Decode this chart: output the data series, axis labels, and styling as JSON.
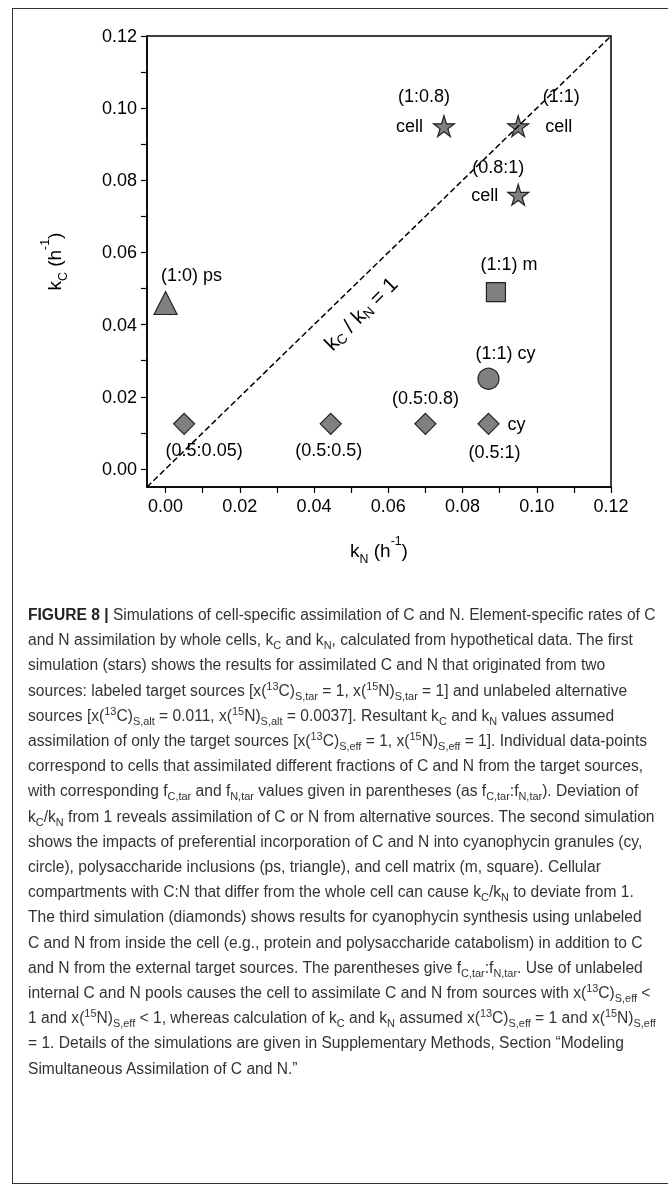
{
  "chart_data": {
    "type": "scatter",
    "title": "FIGURE 8 |",
    "xlabel": "k$_{N}$ (h$^{-1}$)",
    "ylabel": "k$_{C}$ (h$^{-1}$)",
    "xlim": [
      -0.005,
      0.12
    ],
    "ylim": [
      -0.005,
      0.12
    ],
    "xticks": [
      {
        "value": 0,
        "label": "0.00"
      },
      {
        "value": 0.01,
        "label": null
      },
      {
        "value": 0.02,
        "label": "0.02"
      },
      {
        "value": 0.03,
        "label": null
      },
      {
        "value": 0.04,
        "label": "0.04"
      },
      {
        "value": 0.05,
        "label": null
      },
      {
        "value": 0.06,
        "label": "0.06"
      },
      {
        "value": 0.07,
        "label": null
      },
      {
        "value": 0.08,
        "label": "0.08"
      },
      {
        "value": 0.09,
        "label": null
      },
      {
        "value": 0.1,
        "label": "0.10"
      },
      {
        "value": 0.11,
        "label": null
      },
      {
        "value": 0.12,
        "label": "0.12"
      }
    ],
    "yticks": [
      {
        "value": 0,
        "label": "0.00"
      },
      {
        "value": 0.01,
        "label": null
      },
      {
        "value": 0.02,
        "label": "0.02"
      },
      {
        "value": 0.03,
        "label": null
      },
      {
        "value": 0.04,
        "label": "0.04"
      },
      {
        "value": 0.05,
        "label": null
      },
      {
        "value": 0.06,
        "label": "0.06"
      },
      {
        "value": 0.07,
        "label": null
      },
      {
        "value": 0.08,
        "label": "0.08"
      },
      {
        "value": 0.09,
        "label": null
      },
      {
        "value": 0.1,
        "label": "0.10"
      },
      {
        "value": 0.11,
        "label": null
      },
      {
        "value": 0.12,
        "label": "0.12"
      }
    ],
    "series": [
      {
        "type": "line",
        "color": "#000000",
        "line_style": "dashed",
        "marker": "none",
        "x": [
          -0.005,
          0.12
        ],
        "values": [
          -0.005,
          0.12
        ]
      },
      {
        "color": "#808080",
        "marker": "star",
        "x": [
          0.075,
          0.095,
          0.095
        ],
        "values": [
          0.095,
          0.095,
          0.076
        ]
      },
      {
        "color": "#808080",
        "marker": "triangle",
        "x": [
          0
        ],
        "values": [
          0.046
        ]
      },
      {
        "color": "#808080",
        "marker": "square",
        "x": [
          0.089
        ],
        "values": [
          0.049
        ]
      },
      {
        "color": "#808080",
        "marker": "circle",
        "x": [
          0.087
        ],
        "values": [
          0.025
        ]
      },
      {
        "color": "#808080",
        "marker": "diamond",
        "x": [
          0.005,
          0.0445,
          0.07,
          0.087
        ],
        "values": [
          0.0125,
          0.0125,
          0.0125,
          0.0125
        ]
      }
    ],
    "annotations": [
      {
        "text": "(1:0.8)",
        "x": 0.075,
        "y": 0.095
      },
      {
        "text": "cell",
        "x": 0.075,
        "y": 0.095
      },
      {
        "text": "(1:1)",
        "x": 0.095,
        "y": 0.095
      },
      {
        "text": "cell",
        "x": 0.095,
        "y": 0.095
      },
      {
        "text": "(0.8:1)",
        "x": 0.095,
        "y": 0.076
      },
      {
        "text": "cell",
        "x": 0.095,
        "y": 0.076
      },
      {
        "text": "(1:0) ps",
        "x": 0,
        "y": 0.046
      },
      {
        "text": "(1:1) m",
        "x": 0.089,
        "y": 0.049
      },
      {
        "text": "(1:1) cy",
        "x": 0.087,
        "y": 0.025
      },
      {
        "text": "(0.5:0.05)",
        "x": 0.005,
        "y": 0.0125
      },
      {
        "text": "(0.5:0.5)",
        "x": 0.0445,
        "y": 0.0125
      },
      {
        "text": "(0.5:0.8)",
        "x": 0.07,
        "y": 0.0125
      },
      {
        "text": "cy",
        "x": 0.087,
        "y": 0.0125
      },
      {
        "text": "(0.5:1)",
        "x": 0.087,
        "y": 0.0125
      },
      {
        "text": "k$_{C}$ / k$_{N}$ = 1",
        "x": 0.052,
        "y": 0.052
      },
      "Simulations of cell-specific assimilation of C and N. Element-specific rates of C and N assimilation by whole cells, k$_{C}$ and k$_{N}$, calculated from hypothetical data. The first simulation (stars) shows the results for assimilated C and N that originated from two sources: labeled target sources [x($^{13}$C)$_{S,tar}$ = 1, x($^{15}$N)$_{S,tar}$ = 1] and unlabeled alternative sources [x($^{13}$C)$_{S,alt}$ = 0.011, x($^{15}$N)$_{S,alt}$ = 0.0037]. Resultant k$_{C}$ and k$_{N}$ values assumed assimilation of only the target sources [x($^{13}$C)$_{S,eff}$ = 1, x($^{15}$N)$_{S,eff}$ = 1]. Individual data-points correspond to cells that assimilated different fractions of C and N from the target sources, with corresponding f$_{C,tar}$ and f$_{N,tar}$ values given in parentheses (as f$_{C,tar}$:f$_{N,tar}$). Deviation of k$_{C}$/k$_{N}$ from 1 reveals assimilation of C or N from alternative sources. The second simulation shows the impacts of preferential incorporation of C and N into cyanophycin granules (cy, circle), polysaccharide inclusions (ps, triangle), and cell matrix (m, square). Cellular compartments with C:N that differ from the whole cell can cause k$_{C}$/k$_{N}$ to deviate from 1. The third simulation (diamonds) shows results for cyanophycin synthesis using unlabeled C and N from inside the cell (e.g., protein and polysaccharide catabolism) in addition to C and N from the external target sources. The parentheses give f$_{C,tar}$:f$_{N,tar}$. Use of unlabeled internal C and N pools causes the cell to assimilate C and N from sources with x($^{13}$C)$_{S,eff}$ < 1 and x($^{15}$N)$_{S,eff}$ < 1, whereas calculation of k$_{C}$ and k$_{N}$ assumed x($^{13}$C)$_{S,eff}$ = 1 and x($^{15}$N)$_{S,eff}$ = 1. Details of the simulations are given in Supplementary Methods, Section “Modeling Simultaneous Assimilation of C and N.”"
    ]
  }
}
